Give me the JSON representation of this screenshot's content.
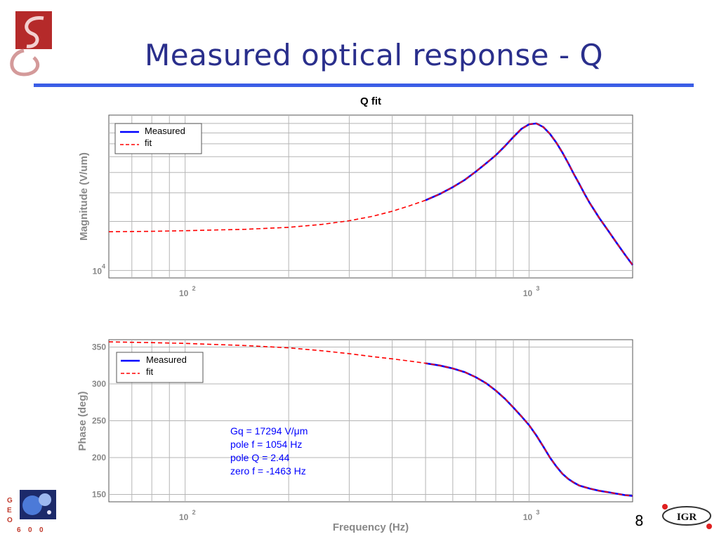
{
  "slide": {
    "title": "Measured optical response - Q",
    "page_number": "8"
  },
  "logos": {
    "geo_letters": [
      "G",
      "E",
      "O",
      "6",
      "0",
      "0"
    ],
    "igr_label": "IGR"
  },
  "colors": {
    "title": "#2a2f8c",
    "rule": "#3b5ee6",
    "measured": "#0000ff",
    "fit": "#ff0000",
    "annotation": "#0000ff",
    "grid": "#b0b0b0"
  },
  "chart_data": [
    {
      "type": "line",
      "title": "Q fit",
      "xlabel": "",
      "ylabel": "Magnitude (V/um)",
      "x_scale": "log",
      "y_scale": "log",
      "xlim": [
        60,
        2000
      ],
      "ylim": [
        9000,
        90000
      ],
      "x_tick_labels": [
        {
          "value": 100,
          "base": "10",
          "exp": "2"
        },
        {
          "value": 1000,
          "base": "10",
          "exp": "3"
        }
      ],
      "y_tick_labels": [
        {
          "value": 10000,
          "base": "10",
          "exp": "4"
        }
      ],
      "grid": true,
      "legend_position": "top-left",
      "series": [
        {
          "name": "Measured",
          "style": "solid",
          "x": [
            500,
            550,
            600,
            650,
            700,
            750,
            800,
            850,
            900,
            950,
            1000,
            1050,
            1100,
            1150,
            1200,
            1250,
            1300,
            1350,
            1400,
            1450,
            1500,
            1600,
            1700,
            1800,
            1900,
            2000
          ],
          "y": [
            27000,
            29500,
            32500,
            36000,
            40500,
            45500,
            51000,
            58000,
            66000,
            74000,
            79000,
            80000,
            76000,
            69000,
            61000,
            53000,
            45500,
            39000,
            34000,
            29500,
            26000,
            21000,
            17500,
            14700,
            12500,
            10800
          ]
        },
        {
          "name": "fit",
          "style": "dashed",
          "x": [
            60,
            80,
            100,
            150,
            200,
            250,
            300,
            350,
            400,
            450,
            500,
            550,
            600,
            650,
            700,
            750,
            800,
            850,
            900,
            950,
            1000,
            1050,
            1100,
            1150,
            1200,
            1250,
            1300,
            1350,
            1400,
            1450,
            1500,
            1600,
            1700,
            1800,
            1900,
            2000
          ],
          "y": [
            17300,
            17400,
            17550,
            17900,
            18400,
            19200,
            20200,
            21500,
            23100,
            25000,
            27000,
            29500,
            32500,
            36000,
            40500,
            45500,
            51000,
            58000,
            66000,
            74000,
            79000,
            80000,
            76000,
            69000,
            61000,
            53000,
            45500,
            39000,
            34000,
            29500,
            26000,
            21000,
            17500,
            14700,
            12500,
            10800
          ]
        }
      ]
    },
    {
      "type": "line",
      "title": "",
      "xlabel": "Frequency (Hz)",
      "ylabel": "Phase (deg)",
      "x_scale": "log",
      "y_scale": "linear",
      "xlim": [
        60,
        2000
      ],
      "ylim": [
        140,
        360
      ],
      "x_tick_labels": [
        {
          "value": 100,
          "base": "10",
          "exp": "2"
        },
        {
          "value": 1000,
          "base": "10",
          "exp": "3"
        }
      ],
      "y_ticks": [
        150,
        200,
        250,
        300,
        350
      ],
      "grid": true,
      "legend_position": "top-left",
      "annotation": [
        "Gq = 17294 V/μm",
        "pole f = 1054 Hz",
        "pole Q = 2.44",
        "zero f = -1463 Hz"
      ],
      "series": [
        {
          "name": "Measured",
          "style": "solid",
          "x": [
            500,
            550,
            600,
            650,
            700,
            750,
            800,
            850,
            900,
            950,
            1000,
            1050,
            1100,
            1150,
            1200,
            1250,
            1300,
            1350,
            1400,
            1500,
            1600,
            1700,
            1800,
            1900,
            2000
          ],
          "y": [
            328,
            325,
            321,
            316,
            309,
            301,
            291,
            280,
            268,
            256,
            244,
            230,
            215,
            200,
            188,
            178,
            171,
            166,
            162,
            158,
            155,
            153,
            151,
            149,
            148
          ]
        },
        {
          "name": "fit",
          "style": "dashed",
          "x": [
            60,
            80,
            100,
            150,
            200,
            250,
            300,
            350,
            400,
            450,
            500,
            550,
            600,
            650,
            700,
            750,
            800,
            850,
            900,
            950,
            1000,
            1050,
            1100,
            1150,
            1200,
            1250,
            1300,
            1350,
            1400,
            1500,
            1600,
            1700,
            1800,
            1900,
            2000
          ],
          "y": [
            357,
            356,
            355,
            352,
            349,
            345,
            341,
            337,
            334,
            331,
            328,
            325,
            321,
            316,
            309,
            301,
            291,
            280,
            268,
            256,
            244,
            230,
            215,
            200,
            188,
            178,
            171,
            166,
            162,
            158,
            155,
            153,
            151,
            149,
            148
          ]
        }
      ]
    }
  ]
}
